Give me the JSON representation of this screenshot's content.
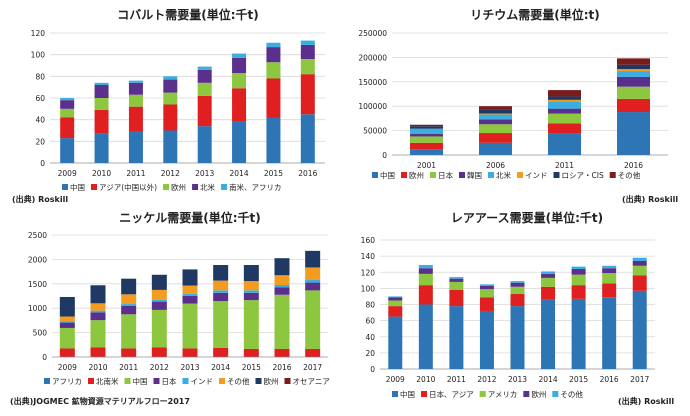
{
  "chart_data": [
    {
      "id": "cobalt",
      "type": "bar",
      "stacked": true,
      "title": "コバルト需要量(単位:千t)",
      "source": "(出典) Roskill",
      "categories": [
        "2009",
        "2010",
        "2011",
        "2012",
        "2013",
        "2014",
        "2015",
        "2016"
      ],
      "ylim": [
        0,
        120
      ],
      "yticks": [
        0,
        20,
        40,
        60,
        80,
        100,
        120
      ],
      "grid": true,
      "legend_position": "bottom",
      "series": [
        {
          "name": "中国",
          "color": "#2e75b6",
          "values": [
            23,
            27,
            29,
            30,
            34,
            38,
            42,
            45
          ]
        },
        {
          "name": "アジア(中国以外)",
          "color": "#e02020",
          "values": [
            19,
            22,
            23,
            24,
            28,
            31,
            36,
            37
          ]
        },
        {
          "name": "欧州",
          "color": "#8dc63f",
          "values": [
            8,
            11,
            11,
            11,
            12,
            14,
            15,
            14
          ]
        },
        {
          "name": "北米",
          "color": "#5b2f8c",
          "values": [
            8,
            12,
            11,
            12,
            12,
            14,
            14,
            13
          ]
        },
        {
          "name": "南米、アフリカ",
          "color": "#3aaee0",
          "values": [
            2,
            2,
            2,
            3,
            3,
            4,
            4,
            4
          ]
        }
      ]
    },
    {
      "id": "lithium",
      "type": "bar",
      "stacked": true,
      "title": "リチウム需要量(単位:t)",
      "source": "(出典) Roskill",
      "categories": [
        "2001",
        "2006",
        "2011",
        "2016"
      ],
      "ylim": [
        0,
        250000
      ],
      "yticks": [
        0,
        50000,
        100000,
        150000,
        200000,
        250000
      ],
      "grid": true,
      "legend_position": "bottom",
      "series": [
        {
          "name": "中国",
          "color": "#2e75b6",
          "values": [
            12000,
            25000,
            45000,
            88000
          ]
        },
        {
          "name": "欧州",
          "color": "#e02020",
          "values": [
            13000,
            20000,
            20000,
            27000
          ]
        },
        {
          "name": "日本",
          "color": "#8dc63f",
          "values": [
            13000,
            18000,
            20000,
            25000
          ]
        },
        {
          "name": "韓国",
          "color": "#5b2f8c",
          "values": [
            5000,
            10000,
            10000,
            20000
          ]
        },
        {
          "name": "北米",
          "color": "#3aaee0",
          "values": [
            11000,
            10000,
            15000,
            12000
          ]
        },
        {
          "name": "インド",
          "color": "#f39c1f",
          "values": [
            0,
            2000,
            3000,
            4000
          ]
        },
        {
          "name": "ロシア・CIS",
          "color": "#1f3864",
          "values": [
            5000,
            8000,
            7000,
            9000
          ]
        },
        {
          "name": "その他",
          "color": "#7b1c1c",
          "values": [
            3000,
            7000,
            13000,
            13000
          ]
        }
      ]
    },
    {
      "id": "nickel",
      "type": "bar",
      "stacked": true,
      "title": "ニッケル需要量(単位:千t)",
      "source": "(出典)JOGMEC 鉱物資源マテリアルフロー2017",
      "categories": [
        "2009",
        "2010",
        "2011",
        "2012",
        "2013",
        "2014",
        "2015",
        "2016",
        "2017"
      ],
      "ylim": [
        0,
        2500
      ],
      "yticks": [
        0,
        500,
        1000,
        1500,
        2000,
        2500
      ],
      "grid": true,
      "legend_position": "bottom",
      "series": [
        {
          "name": "アフリカ",
          "color": "#2e75b6",
          "values": [
            5,
            5,
            5,
            5,
            5,
            5,
            5,
            5,
            5
          ]
        },
        {
          "name": "北南米",
          "color": "#e02020",
          "values": [
            170,
            190,
            170,
            190,
            170,
            180,
            160,
            160,
            160
          ]
        },
        {
          "name": "中国",
          "color": "#8dc63f",
          "values": [
            420,
            560,
            700,
            770,
            920,
            960,
            1000,
            1110,
            1200
          ]
        },
        {
          "name": "日本",
          "color": "#5b2f8c",
          "values": [
            110,
            160,
            170,
            170,
            160,
            170,
            150,
            150,
            160
          ]
        },
        {
          "name": "インド",
          "color": "#3aaee0",
          "values": [
            30,
            35,
            40,
            40,
            40,
            50,
            50,
            50,
            60
          ]
        },
        {
          "name": "その他",
          "color": "#f39c1f",
          "values": [
            95,
            150,
            200,
            200,
            170,
            200,
            190,
            200,
            250
          ]
        },
        {
          "name": "欧州",
          "color": "#1f3864",
          "values": [
            400,
            370,
            320,
            310,
            330,
            320,
            330,
            350,
            340
          ]
        },
        {
          "name": "オセアニア",
          "color": "#7b1c1c",
          "values": [
            0,
            0,
            0,
            0,
            0,
            0,
            0,
            0,
            0
          ]
        }
      ]
    },
    {
      "id": "rareearth",
      "type": "bar",
      "stacked": true,
      "title": "レアアース需要量(単位:千t)",
      "source": "(出典) Roskill",
      "categories": [
        "2009",
        "2010",
        "2011",
        "2012",
        "2013",
        "2014",
        "2015",
        "2016",
        "2017"
      ],
      "ylim": [
        0,
        160
      ],
      "yticks": [
        0,
        20,
        40,
        60,
        80,
        100,
        120,
        140,
        160
      ],
      "grid": true,
      "legend_position": "bottom",
      "series": [
        {
          "name": "中国",
          "color": "#2e75b6",
          "values": [
            65,
            80,
            78,
            72,
            78,
            86,
            87,
            89,
            97
          ]
        },
        {
          "name": "日本、アジア",
          "color": "#e02020",
          "values": [
            13,
            24,
            20,
            17,
            15,
            16,
            17,
            17,
            19
          ]
        },
        {
          "name": "アメリカ",
          "color": "#8dc63f",
          "values": [
            7,
            14,
            10,
            10,
            9,
            11,
            13,
            13,
            12
          ]
        },
        {
          "name": "欧州",
          "color": "#5b2f8c",
          "values": [
            4,
            7,
            4,
            4,
            5,
            5,
            7,
            6,
            6
          ]
        },
        {
          "name": "その他",
          "color": "#3aaee0",
          "values": [
            1,
            4,
            2,
            2,
            2,
            3,
            3,
            3,
            4
          ]
        }
      ]
    }
  ]
}
